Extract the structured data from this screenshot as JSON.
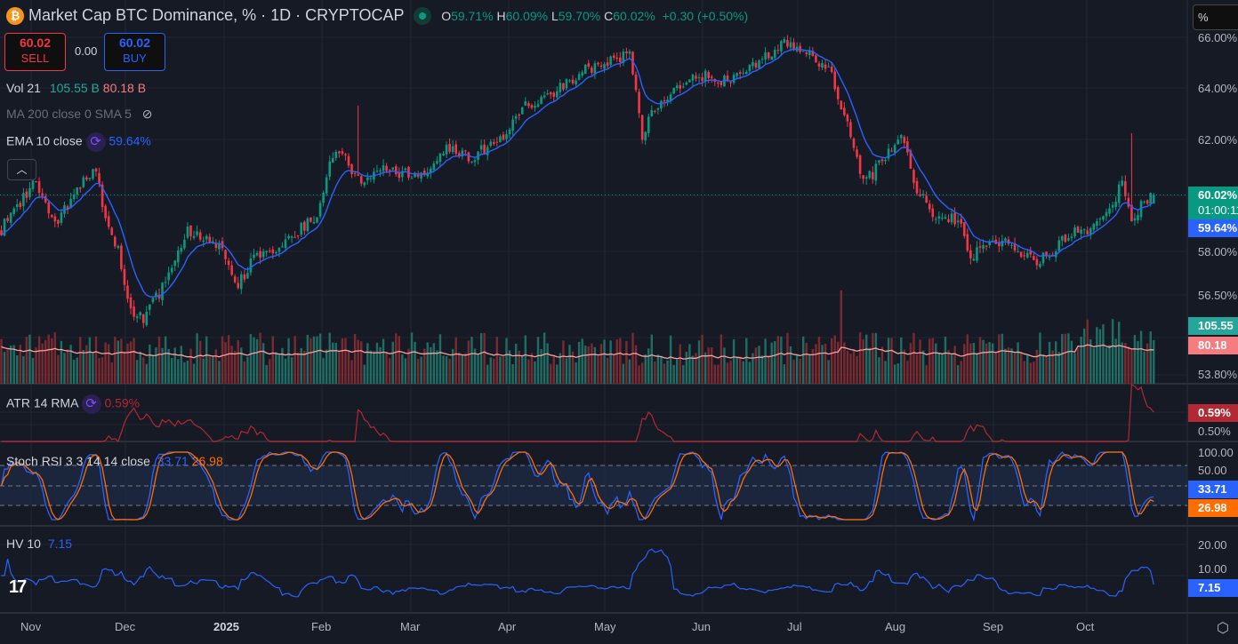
{
  "header": {
    "title": "Market Cap BTC Dominance, % · 1D · CRYPTOCAP",
    "open_label": "O",
    "open": "59.71%",
    "high_label": "H",
    "high": "60.09%",
    "low_label": "L",
    "low": "59.70%",
    "close_label": "C",
    "close": "60.02%",
    "change": "+0.30 (+0.50%)"
  },
  "trade": {
    "sell_price": "60.02",
    "sell_label": "SELL",
    "spread": "0.00",
    "buy_price": "60.02",
    "buy_label": "BUY"
  },
  "indicators": {
    "vol": {
      "label": "Vol 21",
      "up": "105.55 B",
      "down": "80.18 B"
    },
    "ma": {
      "label": "MA 200 close 0 SMA 5"
    },
    "ema": {
      "label": "EMA 10 close",
      "value": "59.64%"
    },
    "atr": {
      "label": "ATR 14 RMA",
      "value": "0.59%"
    },
    "stoch": {
      "label": "Stoch RSI 3 3 14 14 close",
      "k": "33.71",
      "d": "26.98"
    },
    "hv": {
      "label": "HV 10",
      "value": "7.15"
    }
  },
  "scale_input": "%",
  "price_axis": {
    "ticks": [
      "66.00%",
      "64.00%",
      "62.00%",
      "58.00%",
      "56.50%",
      "53.80%"
    ],
    "last": "60.02%",
    "countdown": "01:00:11",
    "ema": "59.64%",
    "vol_up": "105.55",
    "vol_down": "80.18 B"
  },
  "atr_axis": {
    "ticks": [
      "0.50%"
    ],
    "badge": "0.59%"
  },
  "stoch_axis": {
    "ticks": [
      "100.00",
      "50.00"
    ],
    "k_badge": "33.71",
    "d_badge": "26.98"
  },
  "hv_axis": {
    "ticks": [
      "20.00",
      "10.00"
    ],
    "badge": "7.15"
  },
  "time_axis": [
    "Nov",
    "Dec",
    "2025",
    "Feb",
    "Mar",
    "Apr",
    "May",
    "Jun",
    "Jul",
    "Aug",
    "Sep",
    "Oct"
  ],
  "colors": {
    "up": "#089981",
    "down": "#f23645",
    "ema": "#2962ff",
    "volma": "#f7a1a1",
    "atr": "#b22833",
    "k": "#2962ff",
    "d": "#ff6d00",
    "hv": "#2962ff",
    "bg": "#161a25"
  },
  "chart_data": {
    "type": "candlestick",
    "title": "Market Cap BTC Dominance, % · 1D · CRYPTOCAP",
    "ylabel": "%",
    "ylim": [
      53.8,
      66.2
    ],
    "x_unit": "days from start (≈ 22 Oct 2024)",
    "close_path": [
      [
        0,
        58.8
      ],
      [
        11,
        60.5
      ],
      [
        17,
        59
      ],
      [
        23,
        60
      ],
      [
        30,
        61
      ],
      [
        32,
        59.7
      ],
      [
        37,
        58
      ],
      [
        41,
        56
      ],
      [
        45,
        55.6
      ],
      [
        49,
        56.4
      ],
      [
        54,
        57.4
      ],
      [
        59,
        58.7
      ],
      [
        63,
        58.5
      ],
      [
        69,
        58.3
      ],
      [
        75,
        56.8
      ],
      [
        80,
        57.9
      ],
      [
        86,
        58.1
      ],
      [
        93,
        58.7
      ],
      [
        100,
        59.2
      ],
      [
        103,
        60.8
      ],
      [
        107,
        61.6
      ],
      [
        113,
        60.5
      ],
      [
        121,
        61
      ],
      [
        132,
        60.6
      ],
      [
        141,
        61.6
      ],
      [
        149,
        61.4
      ],
      [
        158,
        62
      ],
      [
        166,
        63.3
      ],
      [
        175,
        63.8
      ],
      [
        183,
        64.6
      ],
      [
        194,
        65.1
      ],
      [
        199,
        65.3
      ],
      [
        201,
        63.8
      ],
      [
        203,
        62.2
      ],
      [
        208,
        63.4
      ],
      [
        214,
        64.1
      ],
      [
        223,
        64.5
      ],
      [
        231,
        64.2
      ],
      [
        242,
        65.3
      ],
      [
        248,
        65.8
      ],
      [
        256,
        65.4
      ],
      [
        263,
        64.5
      ],
      [
        268,
        62.5
      ],
      [
        273,
        60.4
      ],
      [
        279,
        61.2
      ],
      [
        285,
        62.1
      ],
      [
        290,
        60.2
      ],
      [
        296,
        59.1
      ],
      [
        303,
        59.2
      ],
      [
        307,
        57.9
      ],
      [
        313,
        58.2
      ],
      [
        318,
        58.5
      ],
      [
        327,
        57.6
      ],
      [
        332,
        57.9
      ],
      [
        338,
        58.6
      ],
      [
        346,
        58.8
      ],
      [
        352,
        59.5
      ],
      [
        355,
        60.5
      ],
      [
        358,
        59.3
      ],
      [
        365,
        60.02
      ]
    ],
    "last": {
      "open": 59.71,
      "high": 60.09,
      "low": 59.7,
      "close": 60.02,
      "change": 0.3,
      "change_pct": 0.5
    },
    "ema10_last": 59.64,
    "vol_up_last_B": 105.55,
    "vol_ma_last_B": 80.18,
    "atr_last_pct": 0.59,
    "stoch_k_last": 33.71,
    "stoch_d_last": 26.98,
    "hv_last": 7.15
  }
}
